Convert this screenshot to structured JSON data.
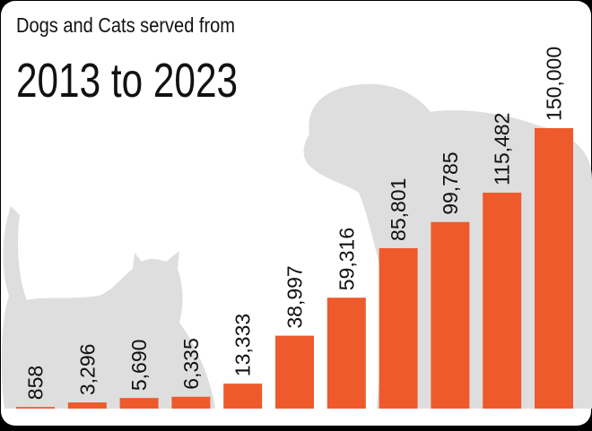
{
  "chart_data": {
    "type": "bar",
    "title": "Dogs and Cats served from",
    "subtitle": "2013 to 2023",
    "values": [
      858,
      3296,
      5690,
      6335,
      13333,
      38997,
      59316,
      85801,
      99785,
      115482,
      150000
    ],
    "value_labels": [
      "858",
      "3,296",
      "5,690",
      "6,335",
      "13,333",
      "38,997",
      "59,316",
      "85,801",
      "99,785",
      "115,482",
      "150,000"
    ],
    "color": "#ee5a2b"
  }
}
